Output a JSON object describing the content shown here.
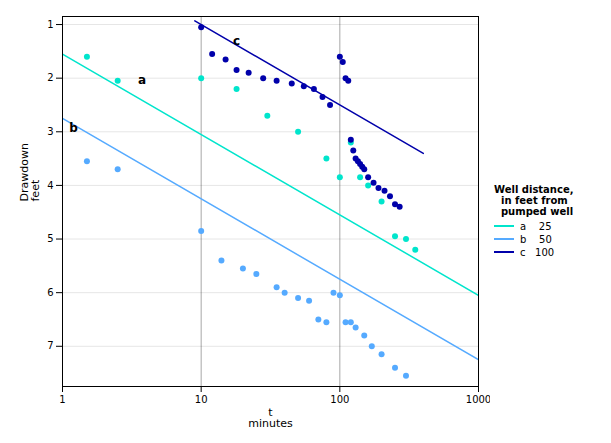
{
  "chart_data": {
    "type": "scatter",
    "xlabel": "t\nminutes",
    "ylabel": "Drawdown\nfeet",
    "log": "x",
    "xlim": [
      1,
      1000
    ],
    "xticks": [
      1,
      10,
      100,
      1000
    ],
    "ylim": [
      7.75,
      0.85
    ],
    "yticks": [
      1,
      2,
      3,
      4,
      5,
      6,
      7
    ],
    "grid": "y",
    "vlines": [
      10,
      100
    ],
    "legend": "right",
    "legend_title": "Well distance,\n  in feet from\n  pumped well",
    "annotations": [
      {
        "text": "a",
        "x": 3.5,
        "y": 2.1
      },
      {
        "text": "b",
        "x": 1.12,
        "y": 3.0
      },
      {
        "text": "c",
        "x": 17,
        "y": 1.38
      }
    ],
    "series": [
      {
        "name": "a    25",
        "color": "#00e5cc",
        "x": [
          1.5,
          2.5,
          10.0,
          18.0,
          30.0,
          50.0,
          80.0,
          100.0,
          120.0,
          140.0,
          160.0,
          200.0,
          250.0,
          300.0,
          350.0
        ],
        "values": [
          1.6,
          2.05,
          2.0,
          2.2,
          2.7,
          3.0,
          3.5,
          3.85,
          3.2,
          3.85,
          4.0,
          4.3,
          4.95,
          5.0,
          5.2
        ],
        "trend": {
          "x": [
            1,
            1000
          ],
          "values": [
            1.55,
            6.05
          ]
        }
      },
      {
        "name": "b    50",
        "color": "#55aaff",
        "x": [
          1.5,
          2.5,
          10.0,
          14.0,
          20.0,
          25.0,
          35.0,
          40.0,
          50.0,
          60.0,
          70.0,
          80.0,
          90.0,
          100.0,
          110.0,
          120.0,
          130.0,
          150.0,
          170.0,
          200.0,
          250.0,
          300.0
        ],
        "values": [
          3.55,
          3.7,
          4.85,
          5.4,
          5.55,
          5.65,
          5.9,
          6.0,
          6.1,
          6.15,
          6.5,
          6.55,
          6.0,
          6.05,
          6.55,
          6.55,
          6.65,
          6.8,
          7.0,
          7.15,
          7.4,
          7.55
        ],
        "trend": {
          "x": [
            1,
            1000
          ],
          "values": [
            2.75,
            7.25
          ]
        }
      },
      {
        "name": "c   100",
        "color": "#0000aa",
        "x": [
          10.0,
          12.0,
          15.0,
          18.0,
          22.0,
          28.0,
          35.0,
          45.0,
          55.0,
          65.0,
          75.0,
          85.0,
          100.0,
          105.0,
          110.0,
          115.0,
          120.0,
          125.0,
          130.0,
          135.0,
          140.0,
          145.0,
          150.0,
          160.0,
          175.0,
          190.0,
          210.0,
          230.0,
          250.0,
          270.0
        ],
        "values": [
          1.05,
          1.55,
          1.65,
          1.85,
          1.9,
          2.0,
          2.05,
          2.1,
          2.15,
          2.2,
          2.35,
          2.5,
          1.6,
          1.7,
          2.0,
          2.05,
          3.15,
          3.35,
          3.5,
          3.55,
          3.6,
          3.65,
          3.7,
          3.85,
          3.95,
          4.05,
          4.1,
          4.2,
          4.35,
          4.4
        ],
        "trend": {
          "x": [
            9,
            400
          ],
          "values": [
            0.9313637641589874,
            3.4030899869919438
          ]
        }
      }
    ]
  }
}
